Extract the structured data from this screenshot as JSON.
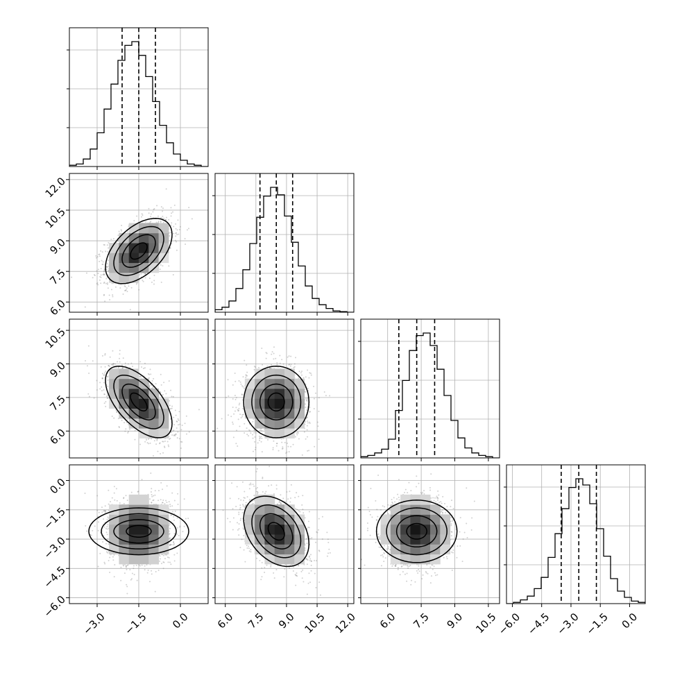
{
  "chart_data": {
    "type": "corner",
    "title": "",
    "parameters": [
      {
        "label": "",
        "mean": -1.5,
        "std": 0.6,
        "range": [
          -4.0,
          1.0
        ],
        "quantiles": [
          -2.1,
          -1.5,
          -0.9
        ],
        "ticks": [
          -3.0,
          -1.5,
          0.0
        ],
        "tick_labels": [
          "−3.0",
          "−1.5",
          "0.0"
        ]
      },
      {
        "label": "",
        "mean": 8.5,
        "std": 0.8,
        "range": [
          5.5,
          12.3
        ],
        "quantiles": [
          7.7,
          8.5,
          9.3
        ],
        "ticks": [
          6.0,
          7.5,
          9.0,
          10.5,
          12.0
        ],
        "tick_labels": [
          "6.0",
          "7.5",
          "9.0",
          "10.5",
          "12.0"
        ]
      },
      {
        "label": "",
        "mean": 7.3,
        "std": 0.8,
        "range": [
          4.8,
          11.0
        ],
        "quantiles": [
          6.5,
          7.3,
          8.1
        ],
        "ticks": [
          6.0,
          7.5,
          9.0,
          10.5
        ],
        "tick_labels": [
          "6.0",
          "7.5",
          "9.0",
          "10.5"
        ]
      },
      {
        "label": "",
        "mean": -2.6,
        "std": 0.9,
        "range": [
          -6.3,
          0.8
        ],
        "quantiles": [
          -3.5,
          -2.6,
          -1.7
        ],
        "ticks": [
          -6.0,
          -4.5,
          -3.0,
          -1.5,
          0.0
        ],
        "tick_labels": [
          "−6.0",
          "−4.5",
          "−3.0",
          "−1.5",
          "0.0"
        ]
      }
    ],
    "correlations": {
      "1-0": 0.5,
      "2-0": -0.6,
      "2-1": 0.0,
      "3-0": 0.0,
      "3-1": -0.35,
      "3-2": 0.0
    },
    "histograms": [
      {
        "bins": 20,
        "counts": [
          0.01,
          0.02,
          0.06,
          0.14,
          0.27,
          0.46,
          0.66,
          0.85,
          0.97,
          1.0,
          0.89,
          0.72,
          0.52,
          0.33,
          0.19,
          0.1,
          0.05,
          0.02,
          0.01,
          0.0
        ]
      },
      {
        "bins": 20,
        "counts": [
          0.02,
          0.04,
          0.09,
          0.19,
          0.34,
          0.55,
          0.76,
          0.93,
          1.0,
          0.94,
          0.77,
          0.56,
          0.37,
          0.21,
          0.11,
          0.06,
          0.03,
          0.01,
          0.005,
          0.0
        ]
      },
      {
        "bins": 20,
        "counts": [
          0.01,
          0.02,
          0.04,
          0.07,
          0.15,
          0.38,
          0.62,
          0.86,
          0.98,
          1.0,
          0.9,
          0.71,
          0.5,
          0.3,
          0.16,
          0.08,
          0.04,
          0.02,
          0.01,
          0.0
        ]
      },
      {
        "bins": 20,
        "counts": [
          0.0,
          0.01,
          0.03,
          0.06,
          0.12,
          0.21,
          0.37,
          0.56,
          0.76,
          0.93,
          1.0,
          0.95,
          0.8,
          0.6,
          0.38,
          0.2,
          0.1,
          0.05,
          0.02,
          0.01
        ]
      }
    ],
    "contour_levels_sigma": [
      0.5,
      1.0,
      1.5,
      2.0
    ],
    "points_per_panel": 1500,
    "grid": true,
    "colors": {
      "points": "#7a7a7a",
      "lines": "#000000",
      "grid": "#b0b0b0"
    }
  }
}
